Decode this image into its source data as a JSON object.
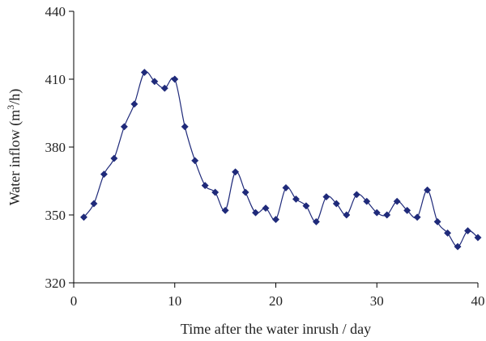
{
  "chart_data": {
    "type": "line",
    "title": "",
    "xlabel": "Time after the water inrush / day",
    "ylabel": "Water inflow (m³/h)",
    "xlim": [
      0,
      40
    ],
    "ylim": [
      320,
      440
    ],
    "xticks": [
      0,
      10,
      20,
      30,
      40
    ],
    "yticks": [
      320,
      350,
      380,
      410,
      440
    ],
    "grid": false,
    "legend": "none",
    "colors": {
      "series": "#1f2a7a",
      "axis": "#000000"
    },
    "series": [
      {
        "marker": "diamond",
        "x": [
          1,
          2,
          3,
          4,
          5,
          6,
          7,
          8,
          9,
          10,
          11,
          12,
          13,
          14,
          15,
          16,
          17,
          18,
          19,
          20,
          21,
          22,
          23,
          24,
          25,
          26,
          27,
          28,
          29,
          30,
          31,
          32,
          33,
          34,
          35,
          36,
          37,
          38,
          39,
          40
        ],
        "y": [
          349,
          355,
          368,
          375,
          389,
          399,
          413,
          409,
          406,
          410,
          389,
          374,
          363,
          360,
          352,
          369,
          360,
          351,
          353,
          348,
          362,
          357,
          354,
          347,
          358,
          355,
          350,
          359,
          356,
          351,
          350,
          356,
          352,
          349,
          361,
          347,
          342,
          336,
          343,
          340
        ]
      }
    ]
  }
}
